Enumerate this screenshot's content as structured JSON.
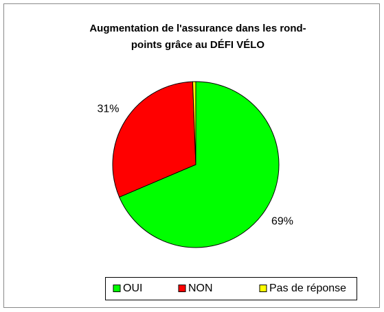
{
  "chart_data": {
    "type": "pie",
    "title": "Augmentation de l'assurance dans les rond-points grâce au DÉFI VÉLO",
    "categories": [
      "OUI",
      "NON",
      "Pas de réponse"
    ],
    "values": [
      69,
      31,
      0.6
    ],
    "value_labels": [
      "69%",
      "31%",
      null
    ],
    "colors": [
      "#00ff00",
      "#ff0000",
      "#ffff00"
    ]
  }
}
